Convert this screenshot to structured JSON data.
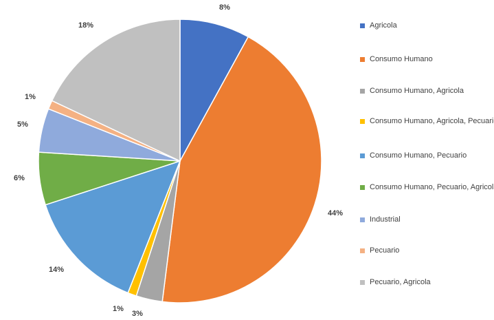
{
  "chart_data": {
    "type": "pie",
    "categories": [
      "Agricola",
      "Consumo Humano",
      "Consumo Humano, Agricola",
      "Consumo Humano, Agricola, Pecuario",
      "Consumo Humano, Pecuario",
      "Consumo Humano, Pecuario, Agricola",
      "Industrial",
      "Pecuario",
      "Pecuario, Agricola"
    ],
    "values": [
      8,
      44,
      3,
      1,
      14,
      6,
      5,
      1,
      18
    ],
    "labels": [
      "8%",
      "44%",
      "3%",
      "1%",
      "14%",
      "6%",
      "5%",
      "1%",
      "18%"
    ],
    "colors": [
      "#4472c4",
      "#ed7d31",
      "#a5a5a5",
      "#ffc000",
      "#5b9bd5",
      "#70ad47",
      "#8faadc",
      "#f4b183",
      "#c0c0c0"
    ],
    "legend_position": "right"
  }
}
